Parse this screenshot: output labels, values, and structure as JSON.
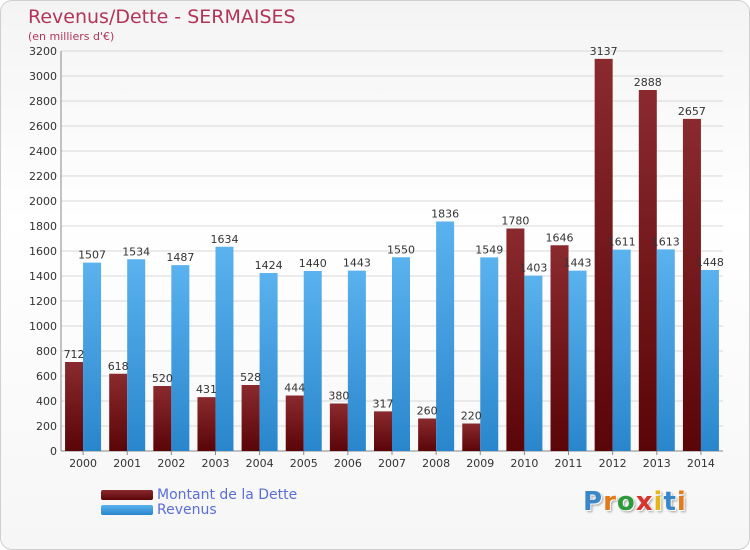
{
  "colors": {
    "debt": "#7a1218",
    "revenue": "#3a9be0",
    "title": "#b2345a",
    "legend_text": "#5a6fd6"
  },
  "logo": {
    "text": "Proxiti",
    "letters": [
      "P",
      "r",
      "o",
      "x",
      "i",
      "t",
      "i"
    ],
    "letter_colors": [
      "#3a87c8",
      "#e07a1a",
      "#2e9a3a",
      "#d9342b",
      "#e6b51a",
      "#3a87c8",
      "#e07a1a"
    ]
  },
  "chart_data": {
    "type": "bar",
    "title": "Revenus/Dette - SERMAISES",
    "subtitle": "(en milliers d'€)",
    "categories": [
      "2000",
      "2001",
      "2002",
      "2003",
      "2004",
      "2005",
      "2006",
      "2007",
      "2008",
      "2009",
      "2010",
      "2011",
      "2012",
      "2013",
      "2014"
    ],
    "series": [
      {
        "name": "Montant de la Dette",
        "values": [
          712,
          618,
          520,
          431,
          528,
          444,
          380,
          317,
          260,
          220,
          1780,
          1646,
          3137,
          2888,
          2657
        ]
      },
      {
        "name": "Revenus",
        "values": [
          1507,
          1534,
          1487,
          1634,
          1424,
          1440,
          1443,
          1550,
          1836,
          1549,
          1403,
          1443,
          1611,
          1613,
          1448
        ]
      }
    ],
    "ylim": [
      0,
      3200
    ],
    "yticks": [
      0,
      200,
      400,
      600,
      800,
      1000,
      1200,
      1400,
      1600,
      1800,
      2000,
      2200,
      2400,
      2600,
      2800,
      3000,
      3200
    ],
    "grid": true,
    "legend_position": "bottom-left"
  }
}
